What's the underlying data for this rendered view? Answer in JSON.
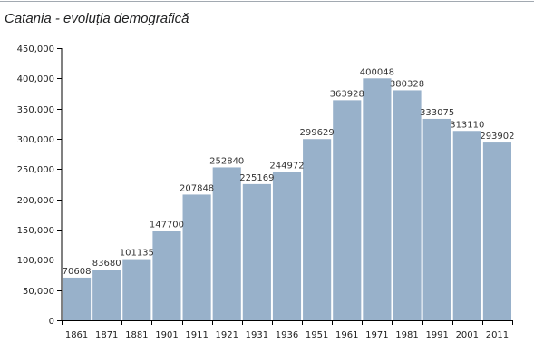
{
  "chart_data": {
    "type": "bar",
    "title": "Catania - evoluția demografică",
    "xlabel": "",
    "ylabel": "",
    "categories": [
      "1861",
      "1871",
      "1881",
      "1901",
      "1911",
      "1921",
      "1931",
      "1936",
      "1951",
      "1961",
      "1971",
      "1981",
      "1991",
      "2001",
      "2011"
    ],
    "values": [
      70608,
      83680,
      101135,
      147700,
      207848,
      252840,
      225169,
      244972,
      299629,
      363928,
      400048,
      380328,
      333075,
      313110,
      293902
    ],
    "value_labels": [
      "70608",
      "83680",
      "101135",
      "147700",
      "207848",
      "252840",
      "225169",
      "244972",
      "299629",
      "363928",
      "400048",
      "380328",
      "333075",
      "313110",
      "293902"
    ],
    "ylim": [
      0,
      450000
    ],
    "yticks": [
      0,
      50000,
      100000,
      150000,
      200000,
      250000,
      300000,
      350000,
      400000,
      450000
    ],
    "ytick_labels": [
      "0",
      "50,000",
      "100,000",
      "150,000",
      "200,000",
      "250,000",
      "300,000",
      "350,000",
      "400,000",
      "450,000"
    ],
    "grid": false,
    "legend": "none",
    "bar_color": "#98b1ca"
  }
}
